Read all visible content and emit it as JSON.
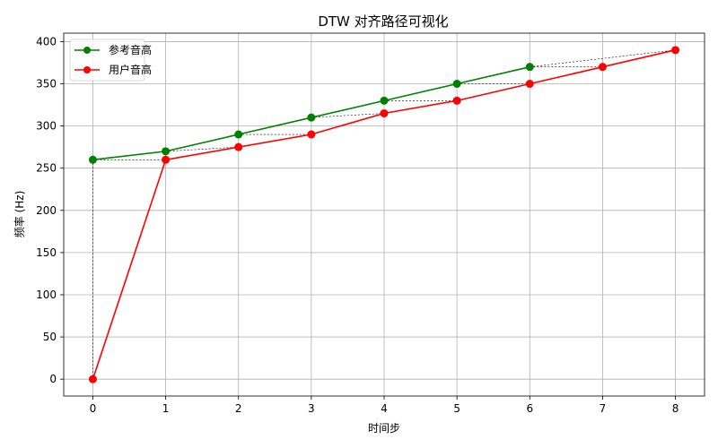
{
  "chart_data": {
    "type": "line",
    "title": "DTW 对齐路径可视化",
    "xlabel": "时间步",
    "ylabel": "频率 (Hz)",
    "xlim": [
      -0.4,
      8.4
    ],
    "ylim": [
      -20,
      410
    ],
    "xticks": [
      0,
      1,
      2,
      3,
      4,
      5,
      6,
      7,
      8
    ],
    "yticks": [
      0,
      50,
      100,
      150,
      200,
      250,
      300,
      350,
      400
    ],
    "grid": true,
    "legend_position": "top-left",
    "series": [
      {
        "name": "参考音高",
        "color": "#008000",
        "marker": "circle",
        "x": [
          0,
          1,
          2,
          3,
          4,
          5,
          6
        ],
        "values": [
          260,
          270,
          290,
          310,
          330,
          350,
          370
        ]
      },
      {
        "name": "用户音高",
        "color": "#ff0000",
        "marker": "circle",
        "x": [
          0,
          1,
          2,
          3,
          4,
          5,
          6,
          7,
          8
        ],
        "values": [
          0,
          260,
          275,
          290,
          315,
          330,
          350,
          370,
          390
        ]
      }
    ],
    "alignment_path": {
      "style": "dashed",
      "color": "#000000",
      "pairs": [
        [
          0,
          0
        ],
        [
          0,
          1
        ],
        [
          1,
          2
        ],
        [
          2,
          3
        ],
        [
          3,
          4
        ],
        [
          4,
          5
        ],
        [
          5,
          6
        ],
        [
          6,
          7
        ],
        [
          6,
          8
        ]
      ]
    }
  }
}
